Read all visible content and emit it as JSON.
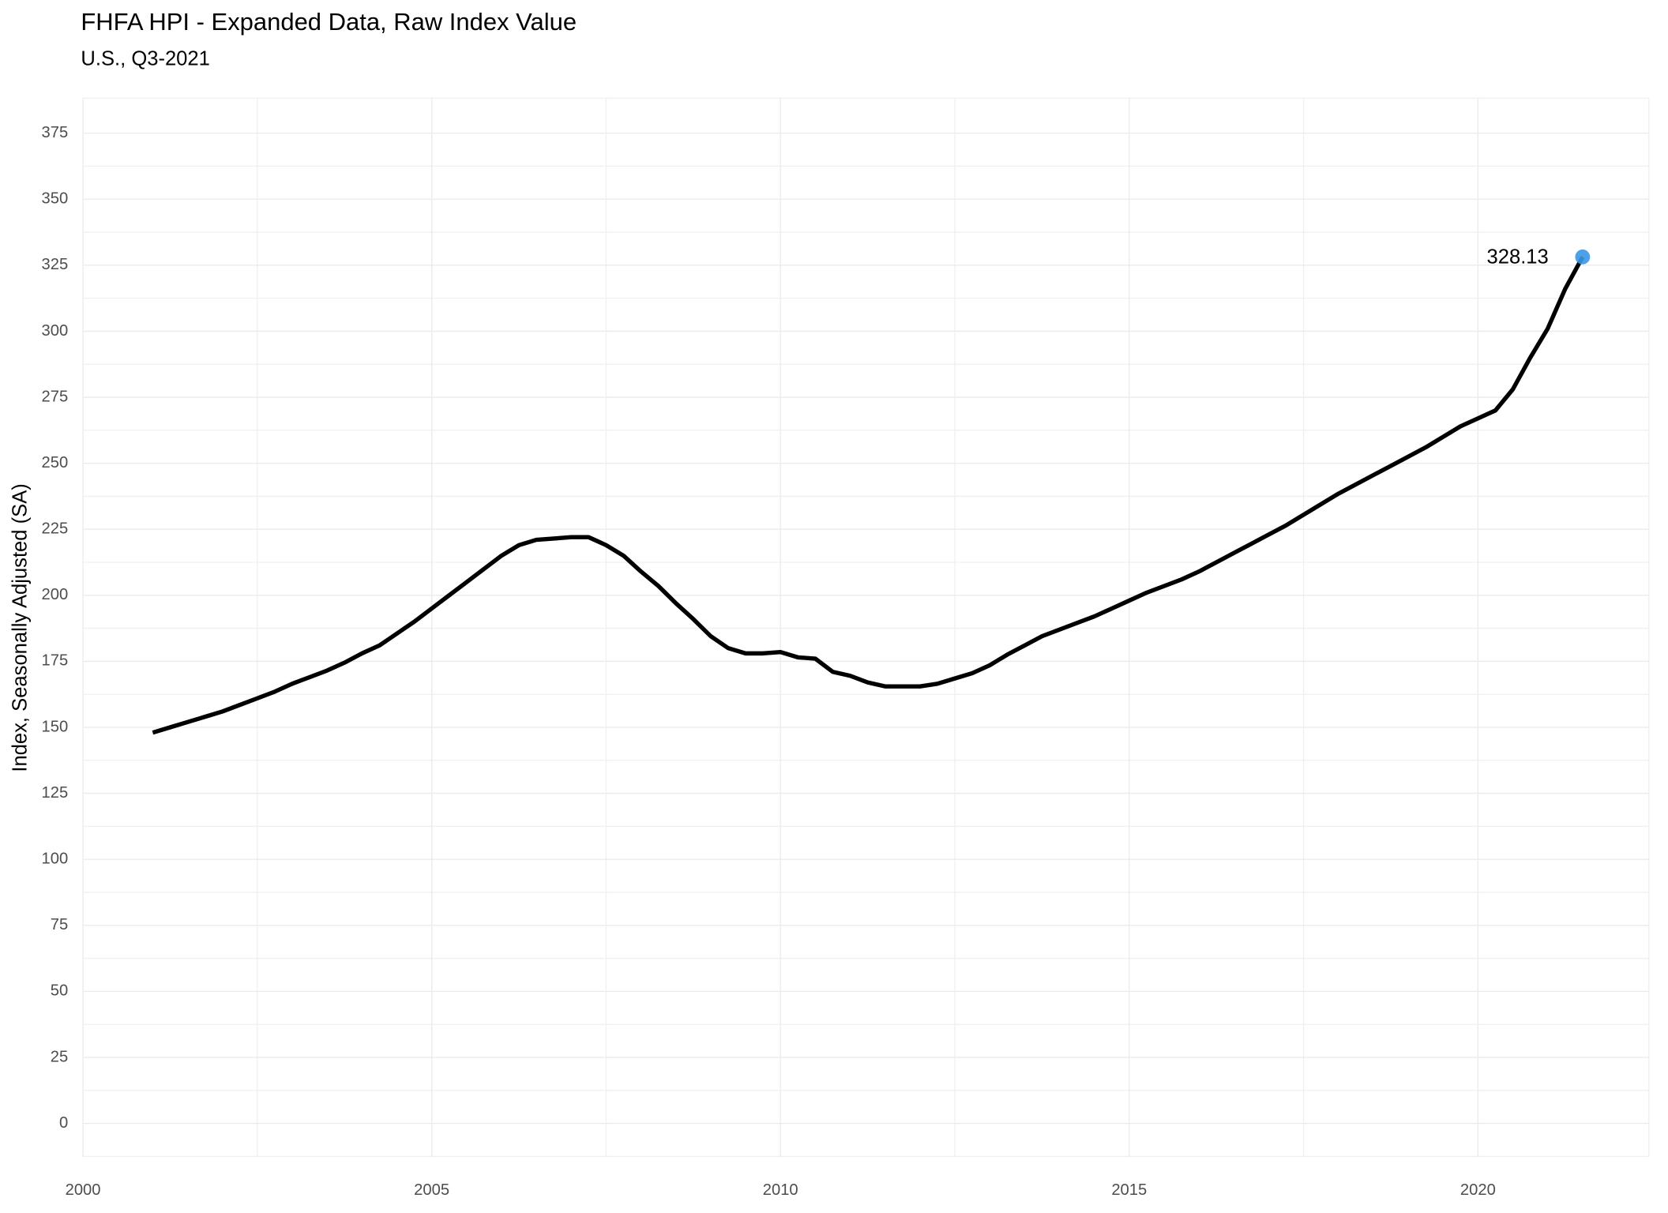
{
  "chart_data": {
    "type": "line",
    "title": "FHFA HPI - Expanded Data, Raw Index Value",
    "subtitle": "U.S., Q3-2021",
    "y_label": "Index, Seasonally Adjusted (SA)",
    "x": [
      2001,
      2001.25,
      2001.5,
      2001.75,
      2002,
      2002.25,
      2002.5,
      2002.75,
      2003,
      2003.25,
      2003.5,
      2003.75,
      2004,
      2004.25,
      2004.5,
      2004.75,
      2005,
      2005.25,
      2005.5,
      2005.75,
      2006,
      2006.25,
      2006.5,
      2006.75,
      2007,
      2007.25,
      2007.5,
      2007.75,
      2008,
      2008.25,
      2008.5,
      2008.75,
      2009,
      2009.25,
      2009.5,
      2009.75,
      2010,
      2010.25,
      2010.5,
      2010.75,
      2011,
      2011.25,
      2011.5,
      2011.75,
      2012,
      2012.25,
      2012.5,
      2012.75,
      2013,
      2013.25,
      2013.5,
      2013.75,
      2014,
      2014.25,
      2014.5,
      2014.75,
      2015,
      2015.25,
      2015.5,
      2015.75,
      2016,
      2016.25,
      2016.5,
      2016.75,
      2017,
      2017.25,
      2017.5,
      2017.75,
      2018,
      2018.25,
      2018.5,
      2018.75,
      2019,
      2019.25,
      2019.5,
      2019.75,
      2020,
      2020.25,
      2020.5,
      2020.75,
      2021,
      2021.25,
      2021.5
    ],
    "series": [
      {
        "color": "#000000",
        "values": [
          148,
          150,
          152,
          154,
          156,
          158.5,
          161,
          163.5,
          166.5,
          169,
          171.5,
          174.5,
          178,
          181,
          185.5,
          190,
          195,
          200,
          205,
          210,
          215,
          219,
          221,
          221.5,
          222,
          222,
          219,
          215,
          209,
          203.5,
          197,
          191,
          184.5,
          180,
          178,
          178,
          178.5,
          176.5,
          176,
          171,
          169.5,
          167,
          165.5,
          165.5,
          165.5,
          166.5,
          168.5,
          170.5,
          173.5,
          177.5,
          181,
          184.5,
          187,
          189.5,
          192,
          195,
          198,
          201,
          203.5,
          206,
          209,
          212.5,
          216,
          219.5,
          223,
          226.5,
          230.5,
          234.5,
          238.5,
          242,
          245.5,
          249,
          252.5,
          256,
          260,
          264,
          267,
          270,
          278,
          290,
          301,
          316,
          328.13
        ]
      }
    ],
    "highlight": {
      "x": 2021.5,
      "value": 328.13,
      "color": "#3a97e6"
    },
    "xlim": [
      2000,
      2022.45
    ],
    "xticks": [
      2000,
      2005,
      2010,
      2015,
      2020
    ],
    "ylim": [
      -12.5,
      388.3
    ],
    "yticks": [
      0,
      25,
      50,
      75,
      100,
      125,
      150,
      175,
      200,
      225,
      250,
      275,
      300,
      325,
      350,
      375
    ],
    "grid": true
  }
}
